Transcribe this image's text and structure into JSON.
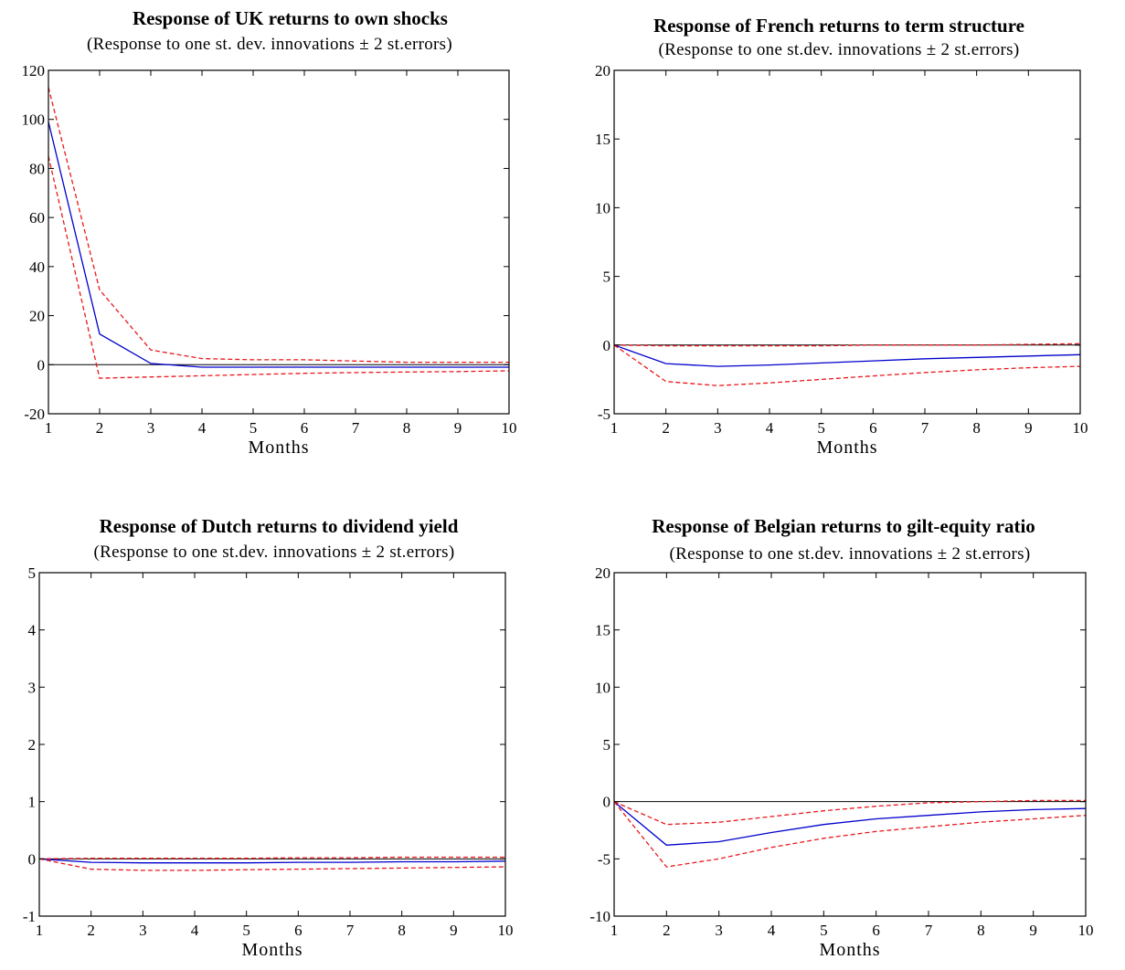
{
  "chart_data": [
    {
      "type": "line",
      "title": "Response of UK returns to own shocks",
      "subtitle": "(Response to one st. dev. innovations ± 2 st.errors)",
      "xlabel": "Months",
      "ylabel": "",
      "x": [
        1,
        2,
        3,
        4,
        5,
        6,
        7,
        8,
        9,
        10
      ],
      "ylim": [
        -20,
        120
      ],
      "yticks": [
        -20,
        0,
        20,
        40,
        60,
        80,
        100,
        120
      ],
      "ytick_labels": [
        "-20",
        "0",
        "20",
        "40",
        "60",
        "80",
        "100",
        "120"
      ],
      "series": [
        {
          "role": "response",
          "color": "#0000cc",
          "dashed": false,
          "values": [
            99,
            12.5,
            0.5,
            -1,
            -1,
            -1,
            -1,
            -1,
            -1,
            -1
          ]
        },
        {
          "role": "upper band",
          "color": "#e8181c",
          "dashed": true,
          "values": [
            113,
            30.5,
            6,
            2.5,
            2,
            2,
            1.5,
            1,
            1,
            1
          ]
        },
        {
          "role": "lower band",
          "color": "#e8181c",
          "dashed": true,
          "values": [
            85,
            -5.5,
            -5,
            -4.5,
            -4,
            -3.5,
            -3.2,
            -3,
            -2.8,
            -2.5
          ]
        }
      ]
    },
    {
      "type": "line",
      "title": "Response of French returns to term structure",
      "subtitle": "(Response to one st.dev. innovations ± 2 st.errors)",
      "xlabel": "Months",
      "ylabel": "",
      "x": [
        1,
        2,
        3,
        4,
        5,
        6,
        7,
        8,
        9,
        10
      ],
      "ylim": [
        -5,
        20
      ],
      "yticks": [
        -5,
        0,
        5,
        10,
        15,
        20
      ],
      "ytick_labels": [
        "-5",
        "0",
        "5",
        "10",
        "15",
        "20"
      ],
      "series": [
        {
          "role": "response",
          "color": "#0000cc",
          "dashed": false,
          "values": [
            0,
            -1.35,
            -1.55,
            -1.45,
            -1.3,
            -1.15,
            -1.0,
            -0.9,
            -0.8,
            -0.7
          ]
        },
        {
          "role": "upper band",
          "color": "#e8181c",
          "dashed": true,
          "values": [
            0,
            -0.05,
            -0.05,
            -0.05,
            -0.05,
            0,
            0,
            0,
            0.05,
            0.1
          ]
        },
        {
          "role": "lower band",
          "color": "#e8181c",
          "dashed": true,
          "values": [
            0,
            -2.65,
            -2.95,
            -2.75,
            -2.5,
            -2.25,
            -2.0,
            -1.8,
            -1.65,
            -1.55
          ]
        }
      ]
    },
    {
      "type": "line",
      "title": "Response of Dutch returns to dividend yield",
      "subtitle": "(Response to one st.dev. innovations ± 2 st.errors)",
      "xlabel": "Months",
      "ylabel": "",
      "x": [
        1,
        2,
        3,
        4,
        5,
        6,
        7,
        8,
        9,
        10
      ],
      "ylim": [
        -1,
        5
      ],
      "yticks": [
        -1,
        0,
        1,
        2,
        3,
        4,
        5
      ],
      "ytick_labels": [
        "-1",
        "0",
        "1",
        "2",
        "3",
        "4",
        "5"
      ],
      "series": [
        {
          "role": "response",
          "color": "#0000cc",
          "dashed": false,
          "values": [
            0,
            -0.06,
            -0.07,
            -0.07,
            -0.07,
            -0.06,
            -0.06,
            -0.05,
            -0.05,
            -0.04
          ]
        },
        {
          "role": "upper band",
          "color": "#e8181c",
          "dashed": true,
          "values": [
            0,
            0.01,
            0.01,
            0.01,
            0.01,
            0.02,
            0.02,
            0.03,
            0.03,
            0.03
          ]
        },
        {
          "role": "lower band",
          "color": "#e8181c",
          "dashed": true,
          "values": [
            0,
            -0.18,
            -0.2,
            -0.2,
            -0.19,
            -0.18,
            -0.17,
            -0.16,
            -0.15,
            -0.14
          ]
        }
      ]
    },
    {
      "type": "line",
      "title": "Response of Belgian returns to gilt-equity ratio",
      "subtitle": "(Response to one st.dev. innovations ± 2 st.errors)",
      "xlabel": "Months",
      "ylabel": "",
      "x": [
        1,
        2,
        3,
        4,
        5,
        6,
        7,
        8,
        9,
        10
      ],
      "ylim": [
        -10,
        20
      ],
      "yticks": [
        -10,
        -5,
        0,
        5,
        10,
        15,
        20
      ],
      "ytick_labels": [
        "-10",
        "-5",
        "0",
        "5",
        "10",
        "15",
        "20"
      ],
      "series": [
        {
          "role": "response",
          "color": "#0000cc",
          "dashed": false,
          "values": [
            0,
            -3.8,
            -3.5,
            -2.7,
            -2.0,
            -1.5,
            -1.2,
            -0.9,
            -0.7,
            -0.6
          ]
        },
        {
          "role": "upper band",
          "color": "#e8181c",
          "dashed": true,
          "values": [
            0,
            -2.0,
            -1.8,
            -1.3,
            -0.8,
            -0.4,
            -0.1,
            0,
            0.1,
            0.1
          ]
        },
        {
          "role": "lower band",
          "color": "#e8181c",
          "dashed": true,
          "values": [
            0,
            -5.7,
            -5.0,
            -4.0,
            -3.2,
            -2.6,
            -2.2,
            -1.8,
            -1.5,
            -1.2
          ]
        }
      ]
    }
  ]
}
